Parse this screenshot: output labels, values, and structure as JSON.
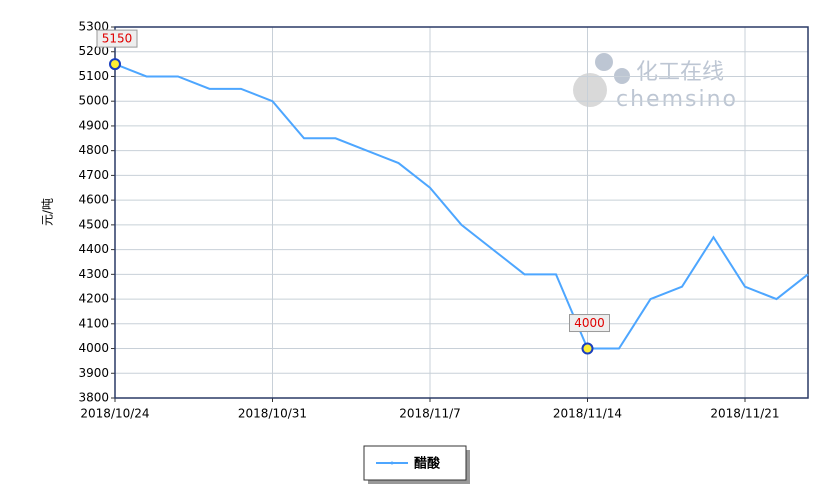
{
  "chart_data": {
    "type": "line",
    "y_label": "元/吨",
    "watermark": [
      "化工在线",
      "chemsino"
    ],
    "categories": [
      "2018/10/24",
      null,
      null,
      null,
      null,
      "2018/10/31",
      null,
      null,
      null,
      null,
      "2018/11/7",
      null,
      null,
      null,
      null,
      "2018/11/14",
      null,
      null,
      null,
      null,
      "2018/11/21",
      null,
      null
    ],
    "series": [
      {
        "name": "醋酸",
        "color": "#4da6ff",
        "values": [
          5150,
          5100,
          5100,
          5050,
          5050,
          5000,
          4850,
          4850,
          4800,
          4750,
          4650,
          4500,
          4400,
          4300,
          4300,
          4000,
          4000,
          4200,
          4250,
          4450,
          4250,
          4200,
          4300
        ],
        "value_labels": [
          "5150",
          null,
          null,
          null,
          null,
          null,
          null,
          null,
          null,
          null,
          null,
          null,
          null,
          null,
          null,
          "4000",
          null,
          null,
          null,
          null,
          null,
          null,
          null
        ]
      }
    ],
    "ylim": [
      3800,
      5300
    ],
    "yticks": [
      3800,
      3900,
      4000,
      4100,
      4200,
      4300,
      4400,
      4500,
      4600,
      4700,
      4800,
      4900,
      5000,
      5100,
      5200,
      5300
    ],
    "grid": true
  }
}
